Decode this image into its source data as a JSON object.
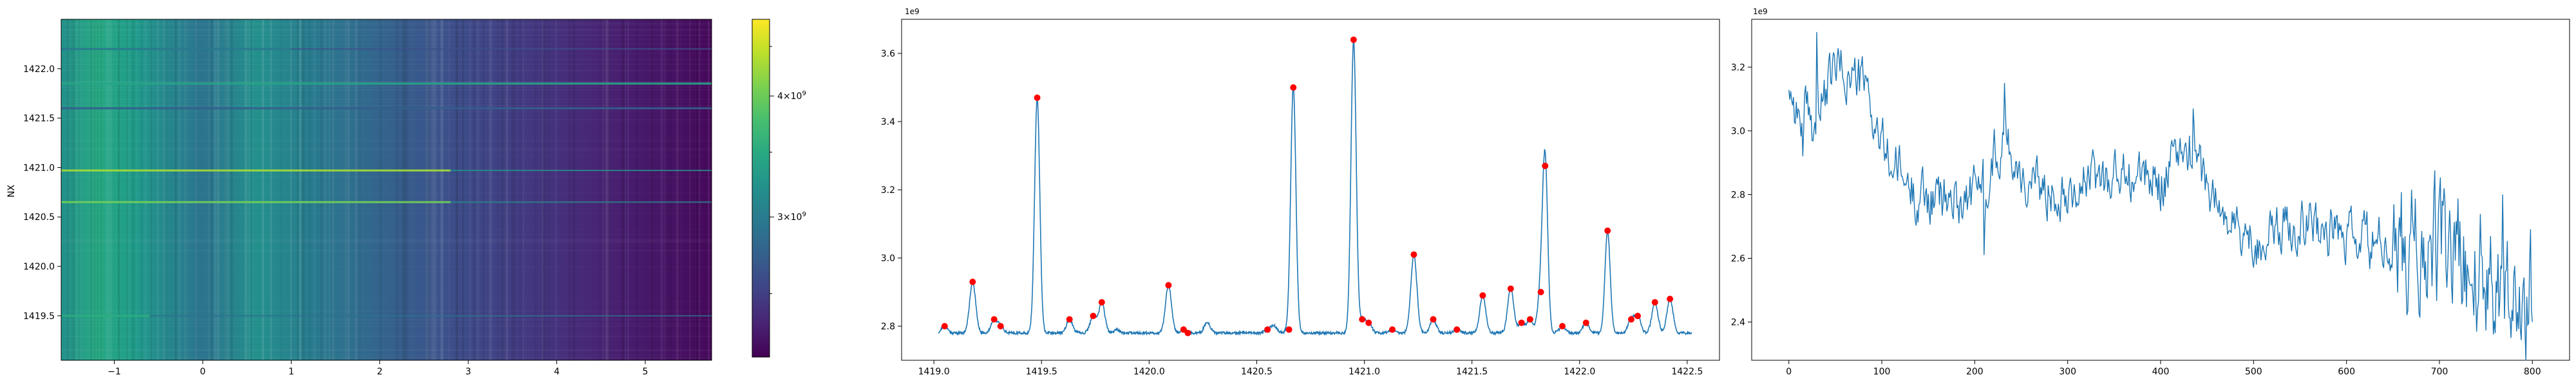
{
  "chart_data": [
    {
      "type": "heatmap",
      "ylabel": "NX",
      "colormap": "viridis",
      "colorscale": "log",
      "xlim": [
        -1.6,
        5.75
      ],
      "ylim": [
        1419.05,
        1422.5
      ],
      "xticks": [
        -1,
        0,
        1,
        2,
        3,
        4,
        5
      ],
      "yticks": [
        1419.5,
        1420.0,
        1420.5,
        1421.0,
        1421.5,
        1422.0
      ],
      "column_gradient": [
        {
          "x": -1.6,
          "level": 0.5
        },
        {
          "x": -1.2,
          "level": 0.6
        },
        {
          "x": -0.8,
          "level": 0.55
        },
        {
          "x": -0.5,
          "level": 0.48
        },
        {
          "x": 0.0,
          "level": 0.38
        },
        {
          "x": 0.6,
          "level": 0.5
        },
        {
          "x": 1.2,
          "level": 0.42
        },
        {
          "x": 2.0,
          "level": 0.32
        },
        {
          "x": 2.6,
          "level": 0.26
        },
        {
          "x": 3.5,
          "level": 0.18
        },
        {
          "x": 4.5,
          "level": 0.1
        },
        {
          "x": 5.75,
          "level": 0.02
        }
      ],
      "highlight_rows": [
        {
          "y": 1419.5,
          "level": 0.62,
          "x_end": -0.6
        },
        {
          "y": 1420.65,
          "level": 0.78,
          "x_end": 2.8
        },
        {
          "y": 1420.97,
          "level": 0.86,
          "x_end": 2.8
        },
        {
          "y": 1421.6,
          "level": 0.3,
          "x_end": 5.75
        },
        {
          "y": 1421.85,
          "level": 0.58,
          "x_end": 5.75
        },
        {
          "y": 1422.2,
          "level": 0.4,
          "x_end": 1.0
        }
      ],
      "colorbar": {
        "range": [
          2150000000.0,
          4800000000.0
        ],
        "tick_labels": [
          {
            "value": 3000000000.0,
            "mantissa": "3",
            "times": "×10",
            "exp": "9"
          },
          {
            "value": 4000000000.0,
            "mantissa": "4",
            "times": "×10",
            "exp": "9"
          }
        ],
        "minor_ticks": [
          2500000000.0,
          3500000000.0,
          4500000000.0
        ]
      }
    },
    {
      "type": "line",
      "offset_label": "1e9",
      "xlim": [
        1418.85,
        1422.65
      ],
      "ylim": [
        2.7,
        3.7
      ],
      "xticks": [
        1419.0,
        1419.5,
        1420.0,
        1420.5,
        1421.0,
        1421.5,
        1422.0,
        1422.5
      ],
      "yticks": [
        2.8,
        3.0,
        3.2,
        3.4,
        3.6
      ],
      "baseline": 2.78,
      "peaks": [
        {
          "x": 1419.05,
          "y": 2.8
        },
        {
          "x": 1419.18,
          "y": 2.93
        },
        {
          "x": 1419.28,
          "y": 2.82
        },
        {
          "x": 1419.31,
          "y": 2.8
        },
        {
          "x": 1419.48,
          "y": 3.47
        },
        {
          "x": 1419.63,
          "y": 2.82
        },
        {
          "x": 1419.74,
          "y": 2.83
        },
        {
          "x": 1419.78,
          "y": 2.87
        },
        {
          "x": 1420.09,
          "y": 2.92
        },
        {
          "x": 1420.16,
          "y": 2.79
        },
        {
          "x": 1420.18,
          "y": 2.78
        },
        {
          "x": 1420.55,
          "y": 2.79
        },
        {
          "x": 1420.65,
          "y": 2.79
        },
        {
          "x": 1420.67,
          "y": 3.5
        },
        {
          "x": 1420.95,
          "y": 3.64
        },
        {
          "x": 1420.99,
          "y": 2.82
        },
        {
          "x": 1421.02,
          "y": 2.81
        },
        {
          "x": 1421.13,
          "y": 2.79
        },
        {
          "x": 1421.23,
          "y": 3.01
        },
        {
          "x": 1421.32,
          "y": 2.82
        },
        {
          "x": 1421.43,
          "y": 2.79
        },
        {
          "x": 1421.55,
          "y": 2.89
        },
        {
          "x": 1421.68,
          "y": 2.91
        },
        {
          "x": 1421.73,
          "y": 2.81
        },
        {
          "x": 1421.77,
          "y": 2.82
        },
        {
          "x": 1421.82,
          "y": 2.9
        },
        {
          "x": 1421.84,
          "y": 3.27
        },
        {
          "x": 1421.92,
          "y": 2.8
        },
        {
          "x": 1422.03,
          "y": 2.81
        },
        {
          "x": 1422.13,
          "y": 3.08
        },
        {
          "x": 1422.24,
          "y": 2.82
        },
        {
          "x": 1422.27,
          "y": 2.83
        },
        {
          "x": 1422.35,
          "y": 2.87
        },
        {
          "x": 1422.42,
          "y": 2.88
        }
      ],
      "extra_bumps": [
        {
          "x": 1420.27,
          "y": 2.81
        },
        {
          "x": 1420.58,
          "y": 2.8
        },
        {
          "x": 1419.85,
          "y": 2.79
        }
      ],
      "line_color": "#1f77b4",
      "marker_color": "#ff0000",
      "x_end": 1422.52
    },
    {
      "type": "line",
      "offset_label": "1e9",
      "xlim": [
        -40,
        840
      ],
      "ylim": [
        2.28,
        3.35
      ],
      "xticks": [
        0,
        100,
        200,
        300,
        400,
        500,
        600,
        700,
        800
      ],
      "yticks": [
        2.4,
        2.6,
        2.8,
        3.0,
        3.2
      ],
      "line_color": "#1f77b4",
      "trend_anchors": [
        {
          "x": 0,
          "y": 3.16
        },
        {
          "x": 10,
          "y": 3.05
        },
        {
          "x": 30,
          "y": 3.02
        },
        {
          "x": 50,
          "y": 3.2
        },
        {
          "x": 80,
          "y": 3.15
        },
        {
          "x": 100,
          "y": 2.95
        },
        {
          "x": 130,
          "y": 2.82
        },
        {
          "x": 160,
          "y": 2.78
        },
        {
          "x": 200,
          "y": 2.8
        },
        {
          "x": 230,
          "y": 2.98
        },
        {
          "x": 260,
          "y": 2.82
        },
        {
          "x": 300,
          "y": 2.83
        },
        {
          "x": 350,
          "y": 2.86
        },
        {
          "x": 400,
          "y": 2.85
        },
        {
          "x": 430,
          "y": 2.95
        },
        {
          "x": 470,
          "y": 2.72
        },
        {
          "x": 500,
          "y": 2.65
        },
        {
          "x": 550,
          "y": 2.73
        },
        {
          "x": 600,
          "y": 2.66
        },
        {
          "x": 650,
          "y": 2.63
        },
        {
          "x": 700,
          "y": 2.62
        },
        {
          "x": 760,
          "y": 2.55
        },
        {
          "x": 800,
          "y": 2.46
        }
      ],
      "spikes": [
        {
          "x": 30,
          "y": 3.31
        },
        {
          "x": 15,
          "y": 2.92
        },
        {
          "x": 232,
          "y": 3.15
        },
        {
          "x": 210,
          "y": 2.61
        },
        {
          "x": 435,
          "y": 3.07
        },
        {
          "x": 705,
          "y": 2.82
        },
        {
          "x": 740,
          "y": 2.37
        },
        {
          "x": 768,
          "y": 2.8
        },
        {
          "x": 777,
          "y": 2.35
        },
        {
          "x": 800,
          "y": 2.4
        }
      ],
      "n_points": 801,
      "noise_amplitude": 0.07
    }
  ]
}
